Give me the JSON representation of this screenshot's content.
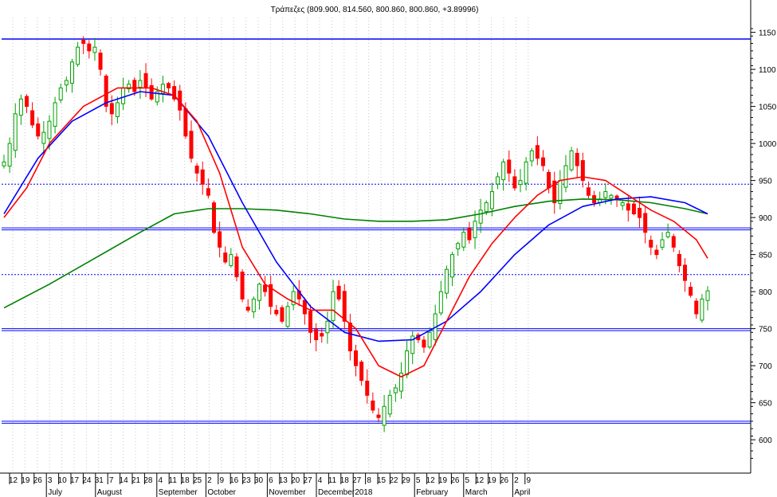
{
  "chart_data": {
    "type": "candlestick",
    "title": "Τράπεζες (809.900, 814.560, 800.860, 800.860, +3.89996)",
    "ylim": [
      555,
      1170
    ],
    "y_ticks": [
      1150,
      1100,
      1050,
      1000,
      950,
      900,
      850,
      800,
      750,
      700,
      650,
      600
    ],
    "x_day_labels": [
      "12",
      "19",
      "26",
      "3",
      "10",
      "17",
      "24",
      "31",
      "7",
      "14",
      "21",
      "28",
      "4",
      "11",
      "18",
      "25",
      "2",
      "9",
      "16",
      "23",
      "30",
      "6",
      "13",
      "20",
      "27",
      "4",
      "11",
      "18",
      "27",
      "8",
      "15",
      "22",
      "29",
      "5",
      "12",
      "19",
      "26",
      "5",
      "12",
      "19",
      "26",
      "2",
      "9"
    ],
    "x_month_labels": [
      {
        "label": "July",
        "at_day_index": 3
      },
      {
        "label": "August",
        "at_day_index": 7
      },
      {
        "label": "September",
        "at_day_index": 12
      },
      {
        "label": "October",
        "at_day_index": 16
      },
      {
        "label": "November",
        "at_day_index": 21
      },
      {
        "label": "December",
        "at_day_index": 25
      },
      {
        "label": "2018",
        "at_day_index": 28
      },
      {
        "label": "February",
        "at_day_index": 33
      },
      {
        "label": "March",
        "at_day_index": 37
      },
      {
        "label": "April",
        "at_day_index": 41
      }
    ],
    "horizontal_lines": [
      {
        "value": 1141,
        "style": "solid",
        "color": "#0000ff"
      },
      {
        "value": 945,
        "style": "dotted",
        "color": "#0000ff"
      },
      {
        "value": 885,
        "style": "double",
        "color": "#0000ff"
      },
      {
        "value": 823,
        "style": "dotted",
        "color": "#0000ff"
      },
      {
        "value": 749,
        "style": "double",
        "color": "#0000ff"
      },
      {
        "value": 624,
        "style": "double",
        "color": "#0000ff"
      }
    ],
    "close_path": [
      [
        0,
        975
      ],
      [
        1,
        1000
      ],
      [
        2,
        1040
      ],
      [
        3,
        1060
      ],
      [
        4,
        1050
      ],
      [
        5,
        1025
      ],
      [
        6,
        1010
      ],
      [
        7,
        1015
      ],
      [
        8,
        1030
      ],
      [
        9,
        1055
      ],
      [
        10,
        1075
      ],
      [
        11,
        1085
      ],
      [
        12,
        1110
      ],
      [
        13,
        1130
      ],
      [
        14,
        1135
      ],
      [
        15,
        1125
      ],
      [
        16,
        1130
      ],
      [
        17,
        1100
      ],
      [
        18,
        1050
      ],
      [
        19,
        1040
      ],
      [
        20,
        1055
      ],
      [
        21,
        1075
      ],
      [
        22,
        1080
      ],
      [
        23,
        1070
      ],
      [
        24,
        1085
      ],
      [
        25,
        1075
      ],
      [
        26,
        1060
      ],
      [
        27,
        1070
      ],
      [
        28,
        1080
      ],
      [
        29,
        1075
      ],
      [
        30,
        1060
      ],
      [
        31,
        1045
      ],
      [
        32,
        1010
      ],
      [
        33,
        980
      ],
      [
        34,
        960
      ],
      [
        35,
        945
      ],
      [
        36,
        930
      ],
      [
        37,
        880
      ],
      [
        38,
        860
      ],
      [
        39,
        840
      ],
      [
        40,
        850
      ],
      [
        41,
        820
      ],
      [
        42,
        790
      ],
      [
        43,
        775
      ],
      [
        44,
        790
      ],
      [
        45,
        810
      ],
      [
        46,
        800
      ],
      [
        47,
        780
      ],
      [
        48,
        770
      ],
      [
        49,
        760
      ],
      [
        50,
        780
      ],
      [
        51,
        800
      ],
      [
        52,
        790
      ],
      [
        53,
        770
      ],
      [
        54,
        745
      ],
      [
        55,
        735
      ],
      [
        56,
        740
      ],
      [
        57,
        760
      ],
      [
        58,
        800
      ],
      [
        59,
        790
      ],
      [
        60,
        760
      ],
      [
        61,
        720
      ],
      [
        62,
        700
      ],
      [
        63,
        680
      ],
      [
        64,
        660
      ],
      [
        65,
        640
      ],
      [
        66,
        630
      ],
      [
        67,
        645
      ],
      [
        68,
        660
      ],
      [
        69,
        670
      ],
      [
        70,
        690
      ],
      [
        71,
        720
      ],
      [
        72,
        740
      ],
      [
        73,
        735
      ],
      [
        74,
        725
      ],
      [
        75,
        745
      ],
      [
        76,
        770
      ],
      [
        77,
        800
      ],
      [
        78,
        830
      ],
      [
        79,
        850
      ],
      [
        80,
        865
      ],
      [
        81,
        880
      ],
      [
        82,
        870
      ],
      [
        83,
        895
      ],
      [
        84,
        910
      ],
      [
        85,
        920
      ],
      [
        86,
        935
      ],
      [
        87,
        955
      ],
      [
        88,
        975
      ],
      [
        89,
        960
      ],
      [
        90,
        940
      ],
      [
        91,
        950
      ],
      [
        92,
        975
      ],
      [
        93,
        990
      ],
      [
        94,
        980
      ],
      [
        95,
        970
      ],
      [
        96,
        940
      ],
      [
        97,
        920
      ],
      [
        98,
        950
      ],
      [
        99,
        970
      ],
      [
        100,
        990
      ],
      [
        101,
        970
      ],
      [
        102,
        950
      ],
      [
        103,
        930
      ],
      [
        104,
        920
      ],
      [
        105,
        925
      ],
      [
        106,
        935
      ],
      [
        107,
        930
      ],
      [
        108,
        925
      ],
      [
        109,
        920
      ],
      [
        110,
        910
      ],
      [
        111,
        905
      ],
      [
        112,
        900
      ],
      [
        113,
        880
      ],
      [
        114,
        860
      ],
      [
        115,
        850
      ],
      [
        116,
        870
      ],
      [
        117,
        880
      ],
      [
        118,
        860
      ],
      [
        119,
        835
      ],
      [
        120,
        815
      ],
      [
        121,
        795
      ],
      [
        122,
        770
      ],
      [
        123,
        790
      ],
      [
        124,
        801
      ]
    ],
    "ma_short_path": [
      [
        0,
        900
      ],
      [
        4,
        940
      ],
      [
        8,
        1000
      ],
      [
        14,
        1050
      ],
      [
        20,
        1075
      ],
      [
        26,
        1075
      ],
      [
        30,
        1065
      ],
      [
        34,
        1030
      ],
      [
        38,
        960
      ],
      [
        42,
        860
      ],
      [
        46,
        810
      ],
      [
        50,
        790
      ],
      [
        54,
        775
      ],
      [
        58,
        775
      ],
      [
        62,
        750
      ],
      [
        66,
        700
      ],
      [
        70,
        685
      ],
      [
        74,
        700
      ],
      [
        78,
        760
      ],
      [
        82,
        820
      ],
      [
        86,
        865
      ],
      [
        90,
        900
      ],
      [
        94,
        930
      ],
      [
        98,
        950
      ],
      [
        102,
        955
      ],
      [
        106,
        950
      ],
      [
        110,
        930
      ],
      [
        114,
        910
      ],
      [
        118,
        895
      ],
      [
        122,
        870
      ],
      [
        124,
        845
      ]
    ],
    "ma_mid_path": [
      [
        0,
        905
      ],
      [
        6,
        980
      ],
      [
        12,
        1030
      ],
      [
        18,
        1055
      ],
      [
        24,
        1070
      ],
      [
        30,
        1065
      ],
      [
        36,
        1010
      ],
      [
        42,
        920
      ],
      [
        48,
        840
      ],
      [
        54,
        780
      ],
      [
        60,
        745
      ],
      [
        66,
        733
      ],
      [
        72,
        735
      ],
      [
        78,
        760
      ],
      [
        84,
        800
      ],
      [
        90,
        850
      ],
      [
        96,
        890
      ],
      [
        102,
        915
      ],
      [
        108,
        925
      ],
      [
        114,
        928
      ],
      [
        120,
        920
      ],
      [
        124,
        905
      ]
    ],
    "ma_long_path": [
      [
        0,
        778
      ],
      [
        8,
        810
      ],
      [
        16,
        845
      ],
      [
        24,
        880
      ],
      [
        30,
        905
      ],
      [
        36,
        912
      ],
      [
        42,
        912
      ],
      [
        48,
        910
      ],
      [
        54,
        905
      ],
      [
        60,
        898
      ],
      [
        66,
        895
      ],
      [
        72,
        895
      ],
      [
        78,
        897
      ],
      [
        84,
        905
      ],
      [
        90,
        915
      ],
      [
        96,
        922
      ],
      [
        102,
        925
      ],
      [
        108,
        924
      ],
      [
        114,
        920
      ],
      [
        120,
        912
      ],
      [
        124,
        905
      ]
    ],
    "colors": {
      "up": "#00a000",
      "down": "#ff0000",
      "ma_short": "#ff0000",
      "ma_mid": "#0000ff",
      "ma_long": "#008000",
      "grid": "#c8c8c8",
      "hline": "#0000ff"
    },
    "grid": true
  }
}
